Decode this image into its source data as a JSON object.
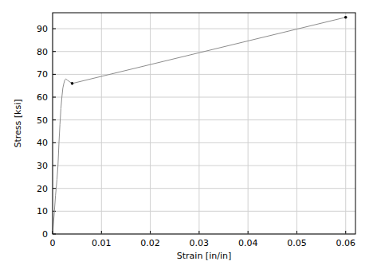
{
  "chart_data": {
    "type": "line",
    "x_label": "Strain [in/in]",
    "y_label": "Stress [ksi]",
    "xlim": [
      0,
      0.062
    ],
    "ylim": [
      0,
      97
    ],
    "xticks": [
      0,
      0.01,
      0.02,
      0.03,
      0.04,
      0.05,
      0.06
    ],
    "yticks": [
      0,
      10,
      20,
      30,
      40,
      50,
      60,
      70,
      80,
      90
    ],
    "grid": true,
    "series": [
      {
        "type": "line",
        "color": "#8c8c8c",
        "x": [
          0,
          0.0003,
          0.0006,
          0.0009,
          0.0011,
          0.0013,
          0.0015,
          0.0017,
          0.0019,
          0.0021,
          0.0023,
          0.0025,
          0.0027,
          0.003,
          0.0033,
          0.004,
          0.06
        ],
        "values": [
          0,
          8,
          17,
          24,
          30,
          40,
          48,
          55,
          60,
          64,
          66,
          67.5,
          68,
          67.5,
          67,
          66,
          95
        ]
      },
      {
        "type": "scatter",
        "color": "#000000",
        "marker": "circle",
        "x": [
          0.004,
          0.06
        ],
        "values": [
          66,
          95
        ]
      }
    ]
  }
}
